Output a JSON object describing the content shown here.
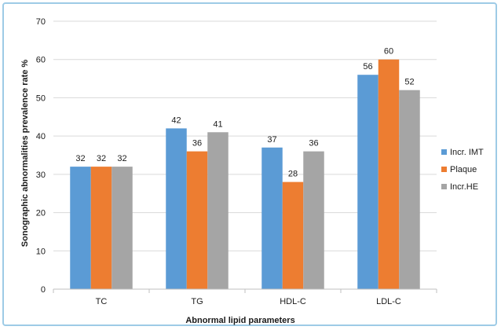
{
  "chart_data": {
    "type": "bar",
    "title": "",
    "xlabel": "Abnormal lipid parameters",
    "ylabel": "Sonographic abnormalities prevalence rate %",
    "categories": [
      "TC",
      "TG",
      "HDL-C",
      "LDL-C"
    ],
    "series": [
      {
        "name": "Incr. IMT",
        "values": [
          32,
          42,
          37,
          56
        ],
        "color": "#5b9bd5"
      },
      {
        "name": "Plaque",
        "values": [
          32,
          36,
          28,
          60
        ],
        "color": "#ed7d31"
      },
      {
        "name": "Incr.HE",
        "values": [
          32,
          41,
          36,
          52
        ],
        "color": "#a5a5a5"
      }
    ],
    "ylim": [
      0,
      70
    ],
    "yticks": [
      0,
      10,
      20,
      30,
      40,
      50,
      60,
      70
    ],
    "grid": true,
    "legend": "right"
  }
}
